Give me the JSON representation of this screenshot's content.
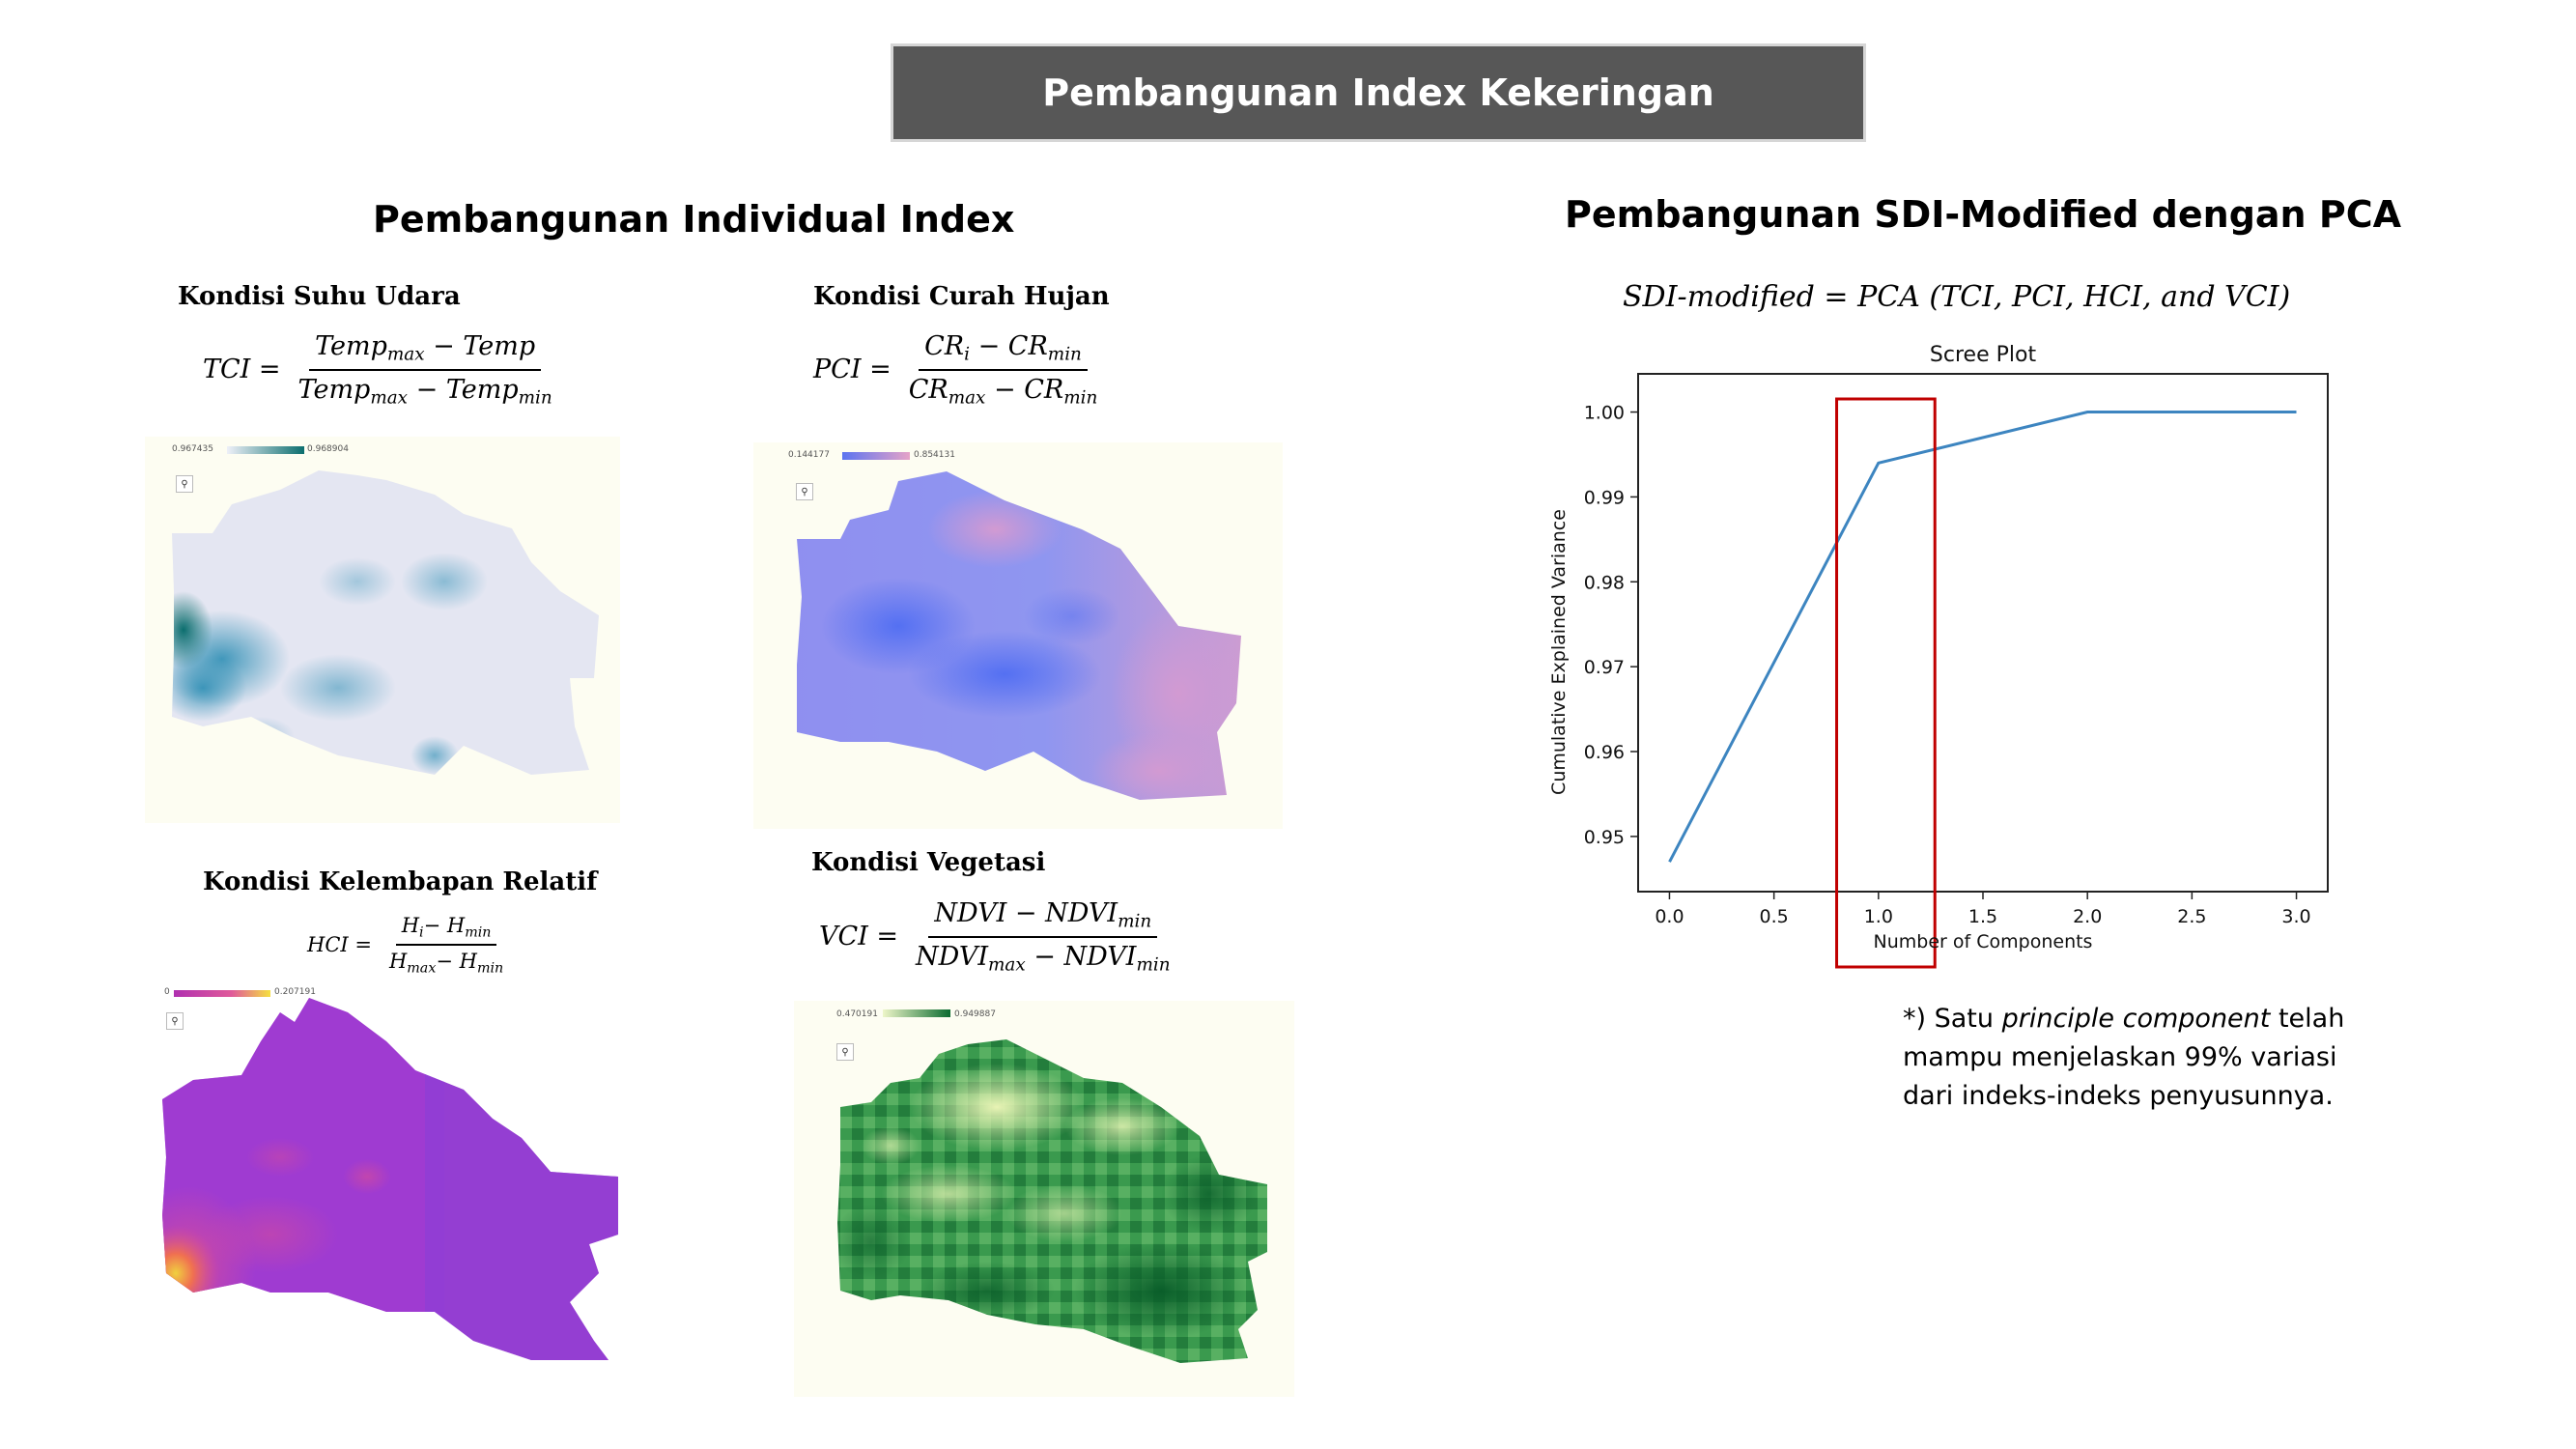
{
  "banner": {
    "title": "Pembangunan Index Kekeringan"
  },
  "left_section": {
    "title": "Pembangunan Individual Index"
  },
  "right_section": {
    "title": "Pembangunan SDI-Modified dengan PCA",
    "formula": "SDI-modified = PCA (TCI, PCI, HCI, and VCI)"
  },
  "indices": {
    "tci": {
      "title": "Kondisi Suhu Udara",
      "lhs": "TCI =",
      "num_a": "Temp",
      "num_a_sub": "max",
      "num_b": " − Temp",
      "den_a": "Temp",
      "den_a_sub": "max",
      "den_b": " − Temp",
      "den_b_sub": "min",
      "legend_low": "0.967435",
      "legend_high": "0.968904"
    },
    "pci": {
      "title": "Kondisi Curah Hujan",
      "lhs": "PCI =",
      "num_a": "CR",
      "num_a_sub": "i",
      "num_b": " − CR",
      "num_b_sub": "min",
      "den_a": "CR",
      "den_a_sub": "max",
      "den_b": " − CR",
      "den_b_sub": "min",
      "legend_low": "0.144177",
      "legend_high": "0.854131"
    },
    "hci": {
      "title": "Kondisi Kelembapan Relatif",
      "lhs": "HCI =",
      "num_a": "H",
      "num_a_sub": "i",
      "num_b": "− H",
      "num_b_sub": "min",
      "den_a": "H",
      "den_a_sub": "max",
      "den_b": "− H",
      "den_b_sub": "min",
      "legend_low": "0",
      "legend_high": "0.207191"
    },
    "vci": {
      "title": "Kondisi Vegetasi",
      "lhs": "VCI =",
      "num_a": "NDVI − NDVI",
      "num_a_sub": "min",
      "den_a": "NDVI",
      "den_a_sub": "max",
      "den_b": " − NDVI",
      "den_b_sub": "min",
      "legend_low": "0.470191",
      "legend_high": "0.949887"
    }
  },
  "note": {
    "prefix": "*) Satu ",
    "emphasis": "principle component",
    "suffix": " telah mampu menjelaskan 99% variasi dari indeks-indeks penyusunnya."
  },
  "colors": {
    "banner_bg": "#575757",
    "line": "#3d85c0",
    "highlight_box": "#c00000",
    "map_bg": "#fdfdf2"
  },
  "icons": {
    "zoom": "search-icon"
  },
  "chart_data": {
    "type": "line",
    "title": "Scree Plot",
    "xlabel": "Number of Components",
    "ylabel": "Cumulative Explained Variance",
    "x": [
      0,
      1,
      2,
      3
    ],
    "y": [
      0.947,
      0.994,
      1.0,
      1.0
    ],
    "xlim": [
      -0.15,
      3.15
    ],
    "ylim": [
      0.9435,
      1.0045
    ],
    "xticks": [
      "0.0",
      "0.5",
      "1.0",
      "1.5",
      "2.0",
      "2.5",
      "3.0"
    ],
    "yticks": [
      "0.95",
      "0.96",
      "0.97",
      "0.98",
      "0.99",
      "1.00"
    ],
    "grid": false,
    "highlight_x_range": [
      0.8,
      1.27
    ]
  }
}
